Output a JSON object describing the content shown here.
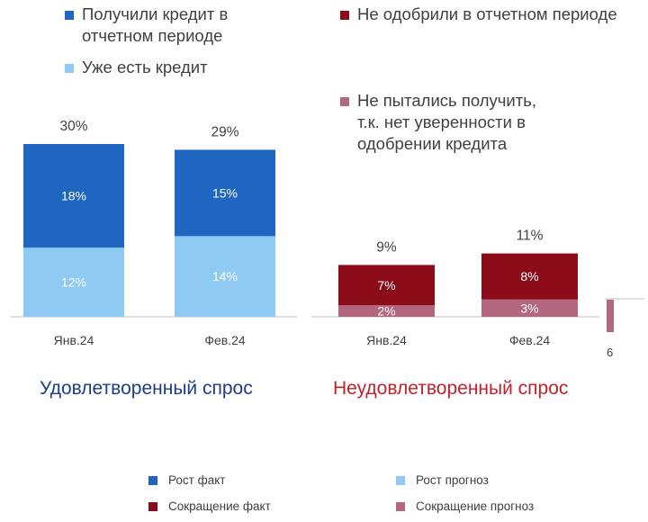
{
  "colors": {
    "satisfied_fact": "#1f66c1",
    "satisfied_prognoz": "#8ecaf2",
    "unsatisfied_fact": "#8b0c18",
    "unsatisfied_prognoz": "#b3677f",
    "satisfied_title": "#1f3c8a",
    "unsatisfied_title": "#c0212c"
  },
  "legend_top_left": [
    {
      "label": "Получили кредит в отчетном периоде",
      "color": "#1f66c1"
    },
    {
      "label": "Уже есть кредит",
      "color": "#8ecaf2"
    }
  ],
  "legend_top_right": [
    {
      "label": "Не одобрили в отчетном периоде",
      "color": "#8b0c18"
    },
    {
      "label": "Не пытались получить, т.к. нет уверенности в одобрении кредита",
      "color": "#b3677f"
    }
  ],
  "legend_bottom": [
    {
      "label": "Рост факт",
      "color": "#1f66c1"
    },
    {
      "label": "Рост прогноз",
      "color": "#8ecaf2"
    },
    {
      "label": "Сокращение факт",
      "color": "#8b0c18"
    },
    {
      "label": "Сокращение прогноз",
      "color": "#b3677f"
    }
  ],
  "edge_fragment": "6",
  "chart_data": [
    {
      "type": "bar",
      "stacked": true,
      "title": "Удовлетворенный спрос",
      "categories": [
        "Янв.24",
        "Фев.24"
      ],
      "series": [
        {
          "name": "Уже есть кредит",
          "values": [
            12,
            14
          ],
          "labels": [
            "12%",
            "14%"
          ]
        },
        {
          "name": "Получили кредит в отчетном периоде",
          "values": [
            18,
            15
          ],
          "labels": [
            "18%",
            "15%"
          ]
        }
      ],
      "totals": [
        "30%",
        "29%"
      ],
      "ylim": [
        0,
        30
      ]
    },
    {
      "type": "bar",
      "stacked": true,
      "title": "Неудовлетворенный спрос",
      "categories": [
        "Янв.24",
        "Фев.24"
      ],
      "series": [
        {
          "name": "Не пытались получить, т.к. нет уверенности в одобрении кредита",
          "values": [
            2,
            3
          ],
          "labels": [
            "2%",
            "3%"
          ]
        },
        {
          "name": "Не одобрили в отчетном периоде",
          "values": [
            7,
            8
          ],
          "labels": [
            "7%",
            "8%"
          ]
        }
      ],
      "totals": [
        "9%",
        "11%"
      ],
      "ylim": [
        0,
        30
      ]
    }
  ]
}
